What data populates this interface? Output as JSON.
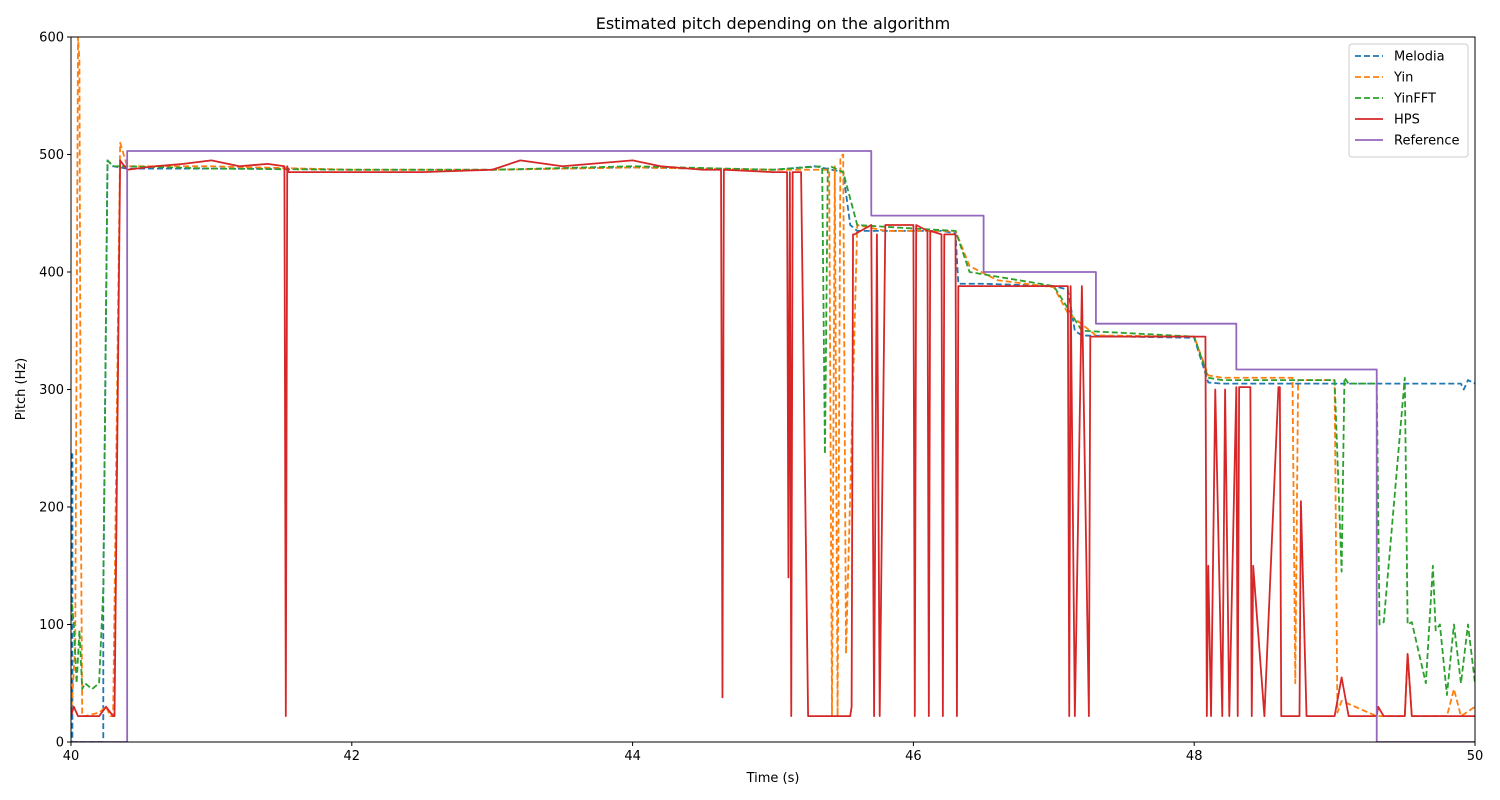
{
  "chart_data": {
    "type": "line",
    "title": "Estimated pitch depending on the algorithm",
    "xlabel": "Time (s)",
    "ylabel": "Pitch (Hz)",
    "xlim": [
      40,
      50
    ],
    "ylim": [
      0,
      600
    ],
    "x_ticks": [
      40,
      42,
      44,
      46,
      48,
      50
    ],
    "y_ticks": [
      0,
      100,
      200,
      300,
      400,
      500,
      600
    ],
    "x_tick_labels": [
      "40",
      "42",
      "44",
      "46",
      "48",
      "50"
    ],
    "y_tick_labels": [
      "0",
      "100",
      "200",
      "300",
      "400",
      "500",
      "600"
    ],
    "grid": false,
    "legend_position": "top-right",
    "series": [
      {
        "name": "Melodia",
        "color": "#1f77b4",
        "style": "dashed",
        "x": [
          40.0,
          40.01,
          40.01,
          40.2,
          40.23,
          40.23,
          40.26,
          40.3,
          40.4,
          40.6,
          41.0,
          41.5,
          42.0,
          43.0,
          44.0,
          44.5,
          45.0,
          45.3,
          45.5,
          45.55,
          45.6,
          45.8,
          46.0,
          46.2,
          46.3,
          46.32,
          46.5,
          47.0,
          47.1,
          47.15,
          47.2,
          47.5,
          48.0,
          48.1,
          48.2,
          48.5,
          49.0,
          49.5,
          49.9,
          49.92,
          49.95,
          50.0
        ],
        "y": [
          245,
          245,
          0,
          0,
          0,
          125,
          495,
          490,
          488,
          488,
          488,
          488,
          487,
          487,
          489,
          488,
          487,
          490,
          485,
          440,
          435,
          435,
          435,
          435,
          433,
          390,
          390,
          388,
          385,
          350,
          346,
          345,
          344,
          306,
          305,
          305,
          305,
          305,
          305,
          300,
          308,
          305
        ]
      },
      {
        "name": "Yin",
        "color": "#ff7f0e",
        "style": "dashed",
        "x": [
          40.0,
          40.03,
          40.05,
          40.06,
          40.07,
          40.08,
          40.1,
          40.2,
          40.25,
          40.28,
          40.3,
          40.35,
          40.4,
          41.0,
          42.0,
          43.0,
          44.0,
          45.0,
          45.4,
          45.42,
          45.44,
          45.46,
          45.48,
          45.5,
          45.52,
          45.6,
          45.8,
          46.0,
          46.2,
          46.3,
          46.4,
          46.6,
          47.0,
          47.1,
          47.3,
          48.0,
          48.1,
          48.2,
          48.7,
          48.72,
          48.74,
          49.0,
          49.02,
          49.05,
          49.3,
          49.5,
          49.52,
          49.55,
          49.6,
          49.8,
          49.85,
          49.9,
          50.0
        ],
        "y": [
          22,
          80,
          600,
          580,
          200,
          22,
          22,
          25,
          30,
          22,
          22,
          510,
          490,
          490,
          487,
          487,
          489,
          487,
          487,
          22,
          490,
          22,
          498,
          500,
          75,
          440,
          435,
          435,
          435,
          435,
          405,
          393,
          387,
          365,
          346,
          345,
          312,
          310,
          310,
          50,
          308,
          308,
          25,
          35,
          22,
          22,
          75,
          22,
          22,
          22,
          45,
          22,
          30
        ]
      },
      {
        "name": "YinFFT",
        "color": "#2ca02c",
        "style": "dashed",
        "x": [
          40.0,
          40.02,
          40.04,
          40.06,
          40.08,
          40.1,
          40.15,
          40.2,
          40.23,
          40.26,
          40.3,
          40.4,
          41.0,
          42.0,
          43.0,
          44.0,
          45.0,
          45.35,
          45.37,
          45.39,
          45.41,
          45.5,
          45.6,
          46.0,
          46.3,
          46.4,
          47.0,
          47.2,
          48.0,
          48.1,
          48.2,
          49.0,
          49.05,
          49.07,
          49.1,
          49.3,
          49.32,
          49.35,
          49.5,
          49.52,
          49.55,
          49.65,
          49.7,
          49.72,
          49.75,
          49.8,
          49.85,
          49.9,
          49.95,
          50.0
        ],
        "y": [
          125,
          100,
          50,
          95,
          45,
          50,
          45,
          50,
          130,
          495,
          490,
          490,
          488,
          487,
          487,
          490,
          487,
          490,
          245,
          488,
          490,
          485,
          440,
          437,
          435,
          400,
          388,
          350,
          345,
          310,
          308,
          308,
          145,
          310,
          305,
          305,
          100,
          102,
          310,
          100,
          102,
          50,
          150,
          95,
          100,
          40,
          100,
          50,
          100,
          50
        ]
      },
      {
        "name": "HPS",
        "color": "#d62728",
        "style": "solid",
        "x": [
          40.0,
          40.02,
          40.05,
          40.2,
          40.25,
          40.3,
          40.31,
          40.35,
          40.4,
          40.6,
          40.8,
          41.0,
          41.2,
          41.4,
          41.52,
          41.53,
          41.54,
          41.55,
          41.6,
          42.0,
          42.5,
          43.0,
          43.2,
          43.5,
          44.0,
          44.2,
          44.5,
          44.63,
          44.64,
          44.65,
          45.0,
          45.1,
          45.11,
          45.12,
          45.13,
          45.14,
          45.15,
          45.2,
          45.25,
          45.26,
          45.55,
          45.56,
          45.57,
          45.58,
          45.7,
          45.72,
          45.74,
          45.76,
          45.8,
          46.0,
          46.01,
          46.02,
          46.1,
          46.11,
          46.12,
          46.2,
          46.21,
          46.22,
          46.3,
          46.31,
          46.32,
          47.1,
          47.11,
          47.12,
          47.15,
          47.2,
          47.25,
          47.26,
          47.6,
          48.0,
          48.08,
          48.09,
          48.1,
          48.12,
          48.15,
          48.2,
          48.22,
          48.25,
          48.3,
          48.31,
          48.32,
          48.4,
          48.41,
          48.42,
          48.5,
          48.6,
          48.61,
          48.62,
          48.75,
          48.76,
          48.8,
          49.0,
          49.05,
          49.1,
          49.3,
          49.31,
          49.35,
          49.5,
          49.52,
          49.55,
          49.8,
          49.9,
          50.0
        ],
        "y": [
          22,
          30,
          22,
          22,
          30,
          22,
          22,
          495,
          487,
          490,
          492,
          495,
          490,
          492,
          490,
          22,
          490,
          485,
          485,
          485,
          485,
          487,
          495,
          490,
          495,
          490,
          487,
          487,
          38,
          487,
          485,
          485,
          140,
          485,
          22,
          485,
          485,
          485,
          22,
          22,
          22,
          30,
          432,
          432,
          440,
          22,
          432,
          22,
          440,
          440,
          22,
          440,
          435,
          22,
          435,
          432,
          22,
          432,
          432,
          22,
          388,
          388,
          22,
          388,
          22,
          388,
          22,
          345,
          345,
          345,
          345,
          22,
          150,
          22,
          300,
          22,
          300,
          22,
          302,
          22,
          302,
          302,
          22,
          150,
          22,
          302,
          302,
          22,
          22,
          205,
          22,
          22,
          55,
          22,
          22,
          30,
          22,
          22,
          75,
          22,
          22,
          22,
          22
        ]
      },
      {
        "name": "Reference",
        "color": "#9467bd",
        "style": "solid",
        "x": [
          40.0,
          40.4,
          40.4,
          45.7,
          45.7,
          46.5,
          46.5,
          47.3,
          47.3,
          48.3,
          48.3,
          49.3,
          49.3,
          50.0
        ],
        "y": [
          0,
          0,
          503,
          503,
          448,
          448,
          400,
          400,
          356,
          356,
          317,
          317,
          0,
          0
        ]
      }
    ]
  }
}
